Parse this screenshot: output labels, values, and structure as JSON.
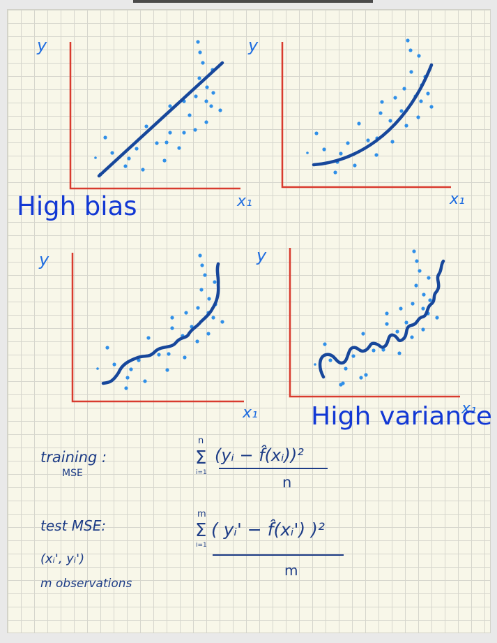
{
  "colors": {
    "axis": "#d83a2e",
    "curve": "#17479b",
    "points": "#2f8fe8",
    "ink": "#1d3c86",
    "label": "#1f6de0",
    "heading": "#1238d4"
  },
  "panels": [
    {
      "id": "top-left",
      "y_label": "y",
      "x_label": "x₁"
    },
    {
      "id": "top-right",
      "y_label": "y",
      "x_label": "x₁"
    },
    {
      "id": "bottom-left",
      "y_label": "y",
      "x_label": "x₁"
    },
    {
      "id": "bottom-right",
      "y_label": "y",
      "x_label": "x₁"
    }
  ],
  "annotations": {
    "high_bias": "High bias",
    "high_variance": "High variance"
  },
  "formulas": {
    "training_label": "training :",
    "training_sub": "MSE",
    "training_numerator": "(yᵢ − f̂(xᵢ))²",
    "training_denominator": "n",
    "training_sum_top": "n",
    "training_sum_bottom": "i=1",
    "test_label": "test MSE:",
    "test_point": "(xᵢ', yᵢ')",
    "test_obs": "m observations",
    "test_numerator": "( yᵢ' − f̂(xᵢ') )²",
    "test_denominator": "m",
    "test_sum_top": "m",
    "test_sum_bottom": "i=1"
  }
}
